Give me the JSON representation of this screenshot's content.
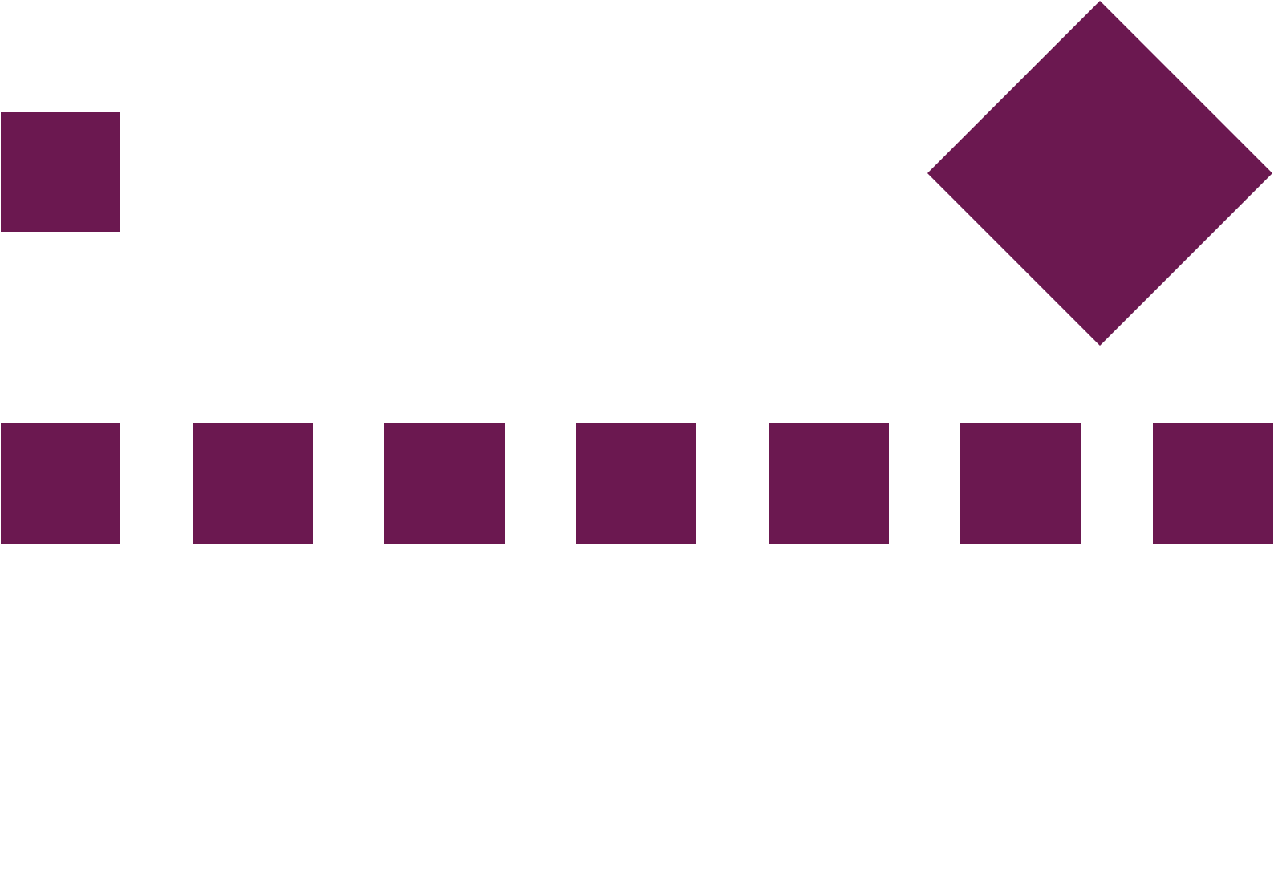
{
  "graphic": {
    "shape_color": "#6B1850",
    "background_color": "#FFFFFF",
    "top_row": {
      "square_count": 1,
      "diamond_count": 1
    },
    "middle_row": {
      "square_count": 7
    }
  }
}
